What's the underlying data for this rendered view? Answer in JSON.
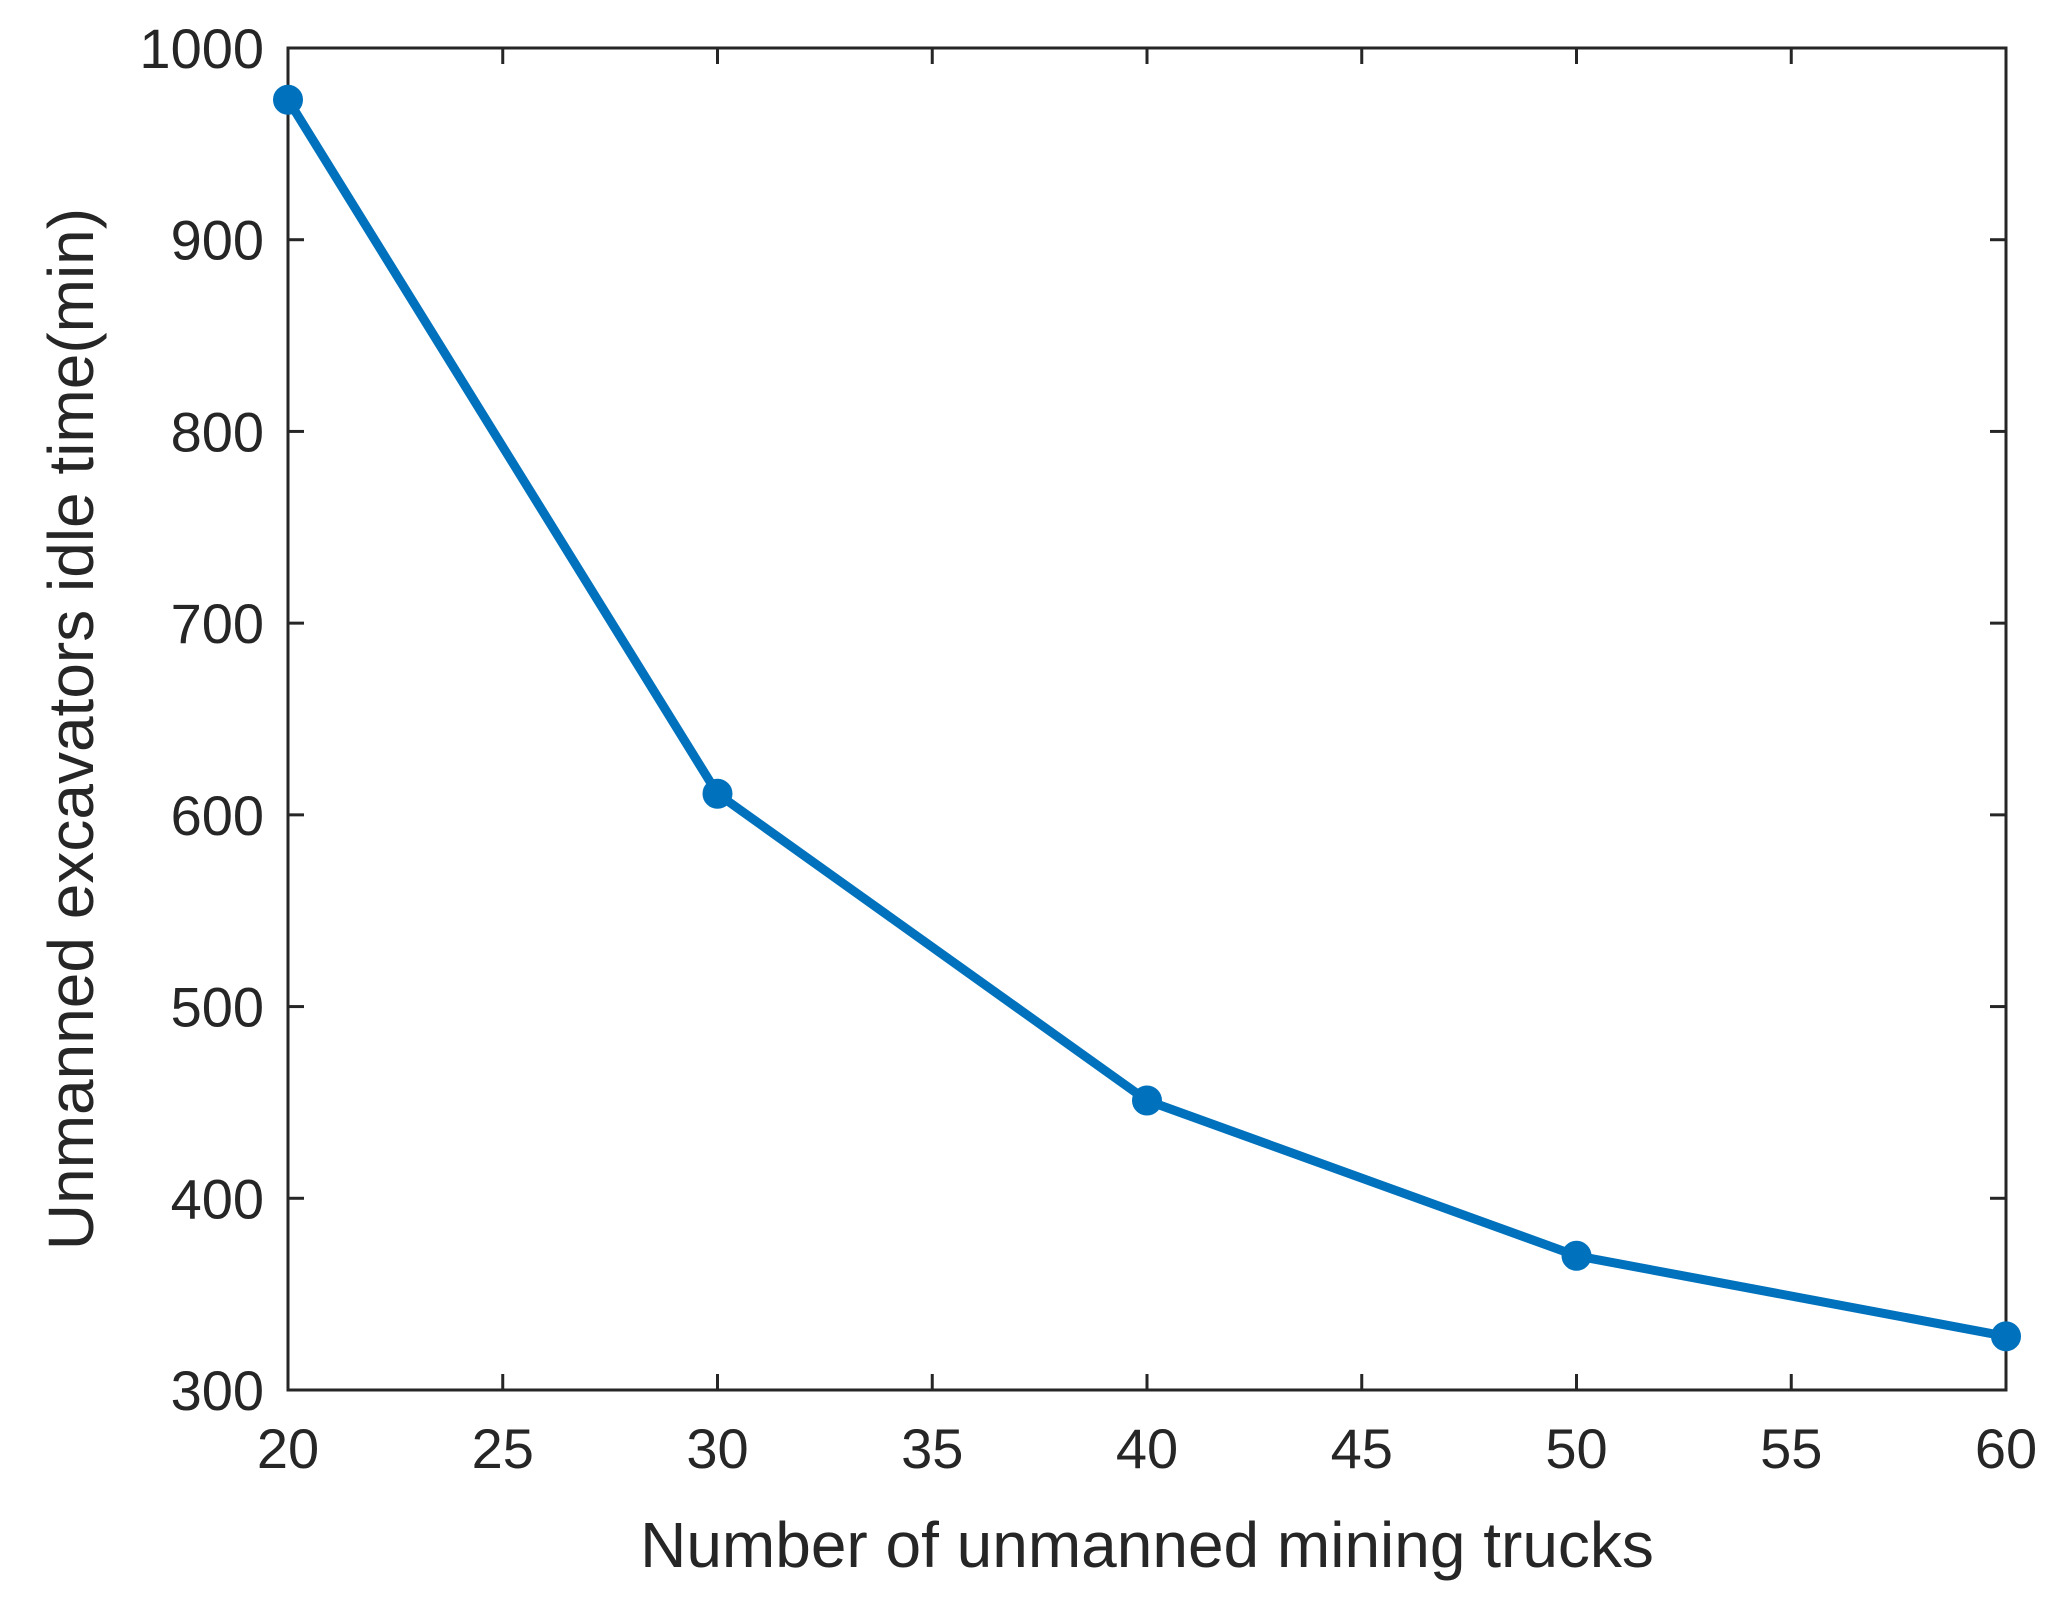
{
  "chart_data": {
    "type": "line",
    "title": "",
    "xlabel": "Number of unmanned mining trucks",
    "ylabel": "Unmanned excavators idle time(min)",
    "xlim": [
      20,
      60
    ],
    "ylim": [
      300,
      1000
    ],
    "xticks": [
      20,
      25,
      30,
      35,
      40,
      45,
      50,
      55,
      60
    ],
    "yticks": [
      300,
      400,
      500,
      600,
      700,
      800,
      900,
      1000
    ],
    "grid": false,
    "legend": "none",
    "series": [
      {
        "name": "Unmanned excavators idle time",
        "color": "#0072BD",
        "marker": "circle",
        "x": [
          20,
          30,
          40,
          50,
          60
        ],
        "y": [
          973,
          611,
          451,
          370,
          328
        ]
      }
    ]
  }
}
